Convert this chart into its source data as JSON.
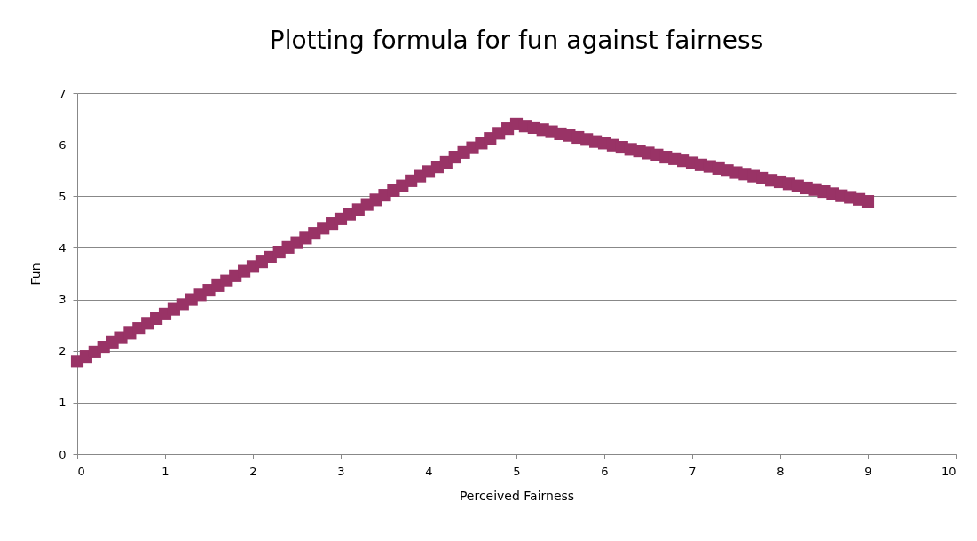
{
  "chart_data": {
    "type": "scatter",
    "title": "Plotting formula for fun against fairness",
    "xlabel": "Perceived Fairness",
    "ylabel": "Fun",
    "x": [
      0,
      0.1,
      0.2,
      0.3,
      0.4,
      0.5,
      0.6,
      0.7,
      0.8,
      0.9,
      1,
      1.1,
      1.2,
      1.3,
      1.4,
      1.5,
      1.6,
      1.7,
      1.8,
      1.9,
      2,
      2.1,
      2.2,
      2.3,
      2.4,
      2.5,
      2.6,
      2.7,
      2.8,
      2.9,
      3,
      3.1,
      3.2,
      3.3,
      3.4,
      3.5,
      3.6,
      3.7,
      3.8,
      3.9,
      4,
      4.1,
      4.2,
      4.3,
      4.4,
      4.5,
      4.6,
      4.7,
      4.8,
      4.9,
      5,
      5.1,
      5.2,
      5.3,
      5.4,
      5.5,
      5.6,
      5.7,
      5.8,
      5.9,
      6,
      6.1,
      6.2,
      6.3,
      6.4,
      6.5,
      6.6,
      6.7,
      6.8,
      6.9,
      7,
      7.1,
      7.2,
      7.3,
      7.4,
      7.5,
      7.6,
      7.7,
      7.8,
      7.9,
      8,
      8.1,
      8.2,
      8.3,
      8.4,
      8.5,
      8.6,
      8.7,
      8.8,
      8.9,
      9
    ],
    "series": [
      {
        "color": "#993366",
        "values": [
          1.8,
          1.89,
          1.98,
          2.08,
          2.17,
          2.26,
          2.35,
          2.44,
          2.54,
          2.63,
          2.72,
          2.81,
          2.9,
          3.0,
          3.09,
          3.18,
          3.27,
          3.36,
          3.46,
          3.55,
          3.64,
          3.73,
          3.82,
          3.92,
          4.01,
          4.1,
          4.19,
          4.28,
          4.38,
          4.47,
          4.56,
          4.65,
          4.74,
          4.84,
          4.93,
          5.02,
          5.11,
          5.2,
          5.3,
          5.39,
          5.48,
          5.57,
          5.66,
          5.76,
          5.85,
          5.94,
          6.03,
          6.12,
          6.22,
          6.31,
          6.4,
          6.36,
          6.33,
          6.29,
          6.25,
          6.21,
          6.18,
          6.14,
          6.1,
          6.06,
          6.03,
          5.99,
          5.95,
          5.91,
          5.88,
          5.84,
          5.8,
          5.76,
          5.73,
          5.69,
          5.65,
          5.61,
          5.58,
          5.54,
          5.5,
          5.46,
          5.43,
          5.39,
          5.35,
          5.31,
          5.28,
          5.24,
          5.2,
          5.16,
          5.13,
          5.09,
          5.05,
          5.01,
          4.98,
          4.94,
          4.9
        ]
      }
    ],
    "xlim": [
      0,
      10
    ],
    "xticks": [
      0,
      1,
      2,
      3,
      4,
      5,
      6,
      7,
      8,
      9,
      10
    ],
    "ylim": [
      0,
      7
    ],
    "yticks": [
      0,
      1,
      2,
      3,
      4,
      5,
      6,
      7
    ],
    "grid": "y",
    "marker": "square"
  }
}
